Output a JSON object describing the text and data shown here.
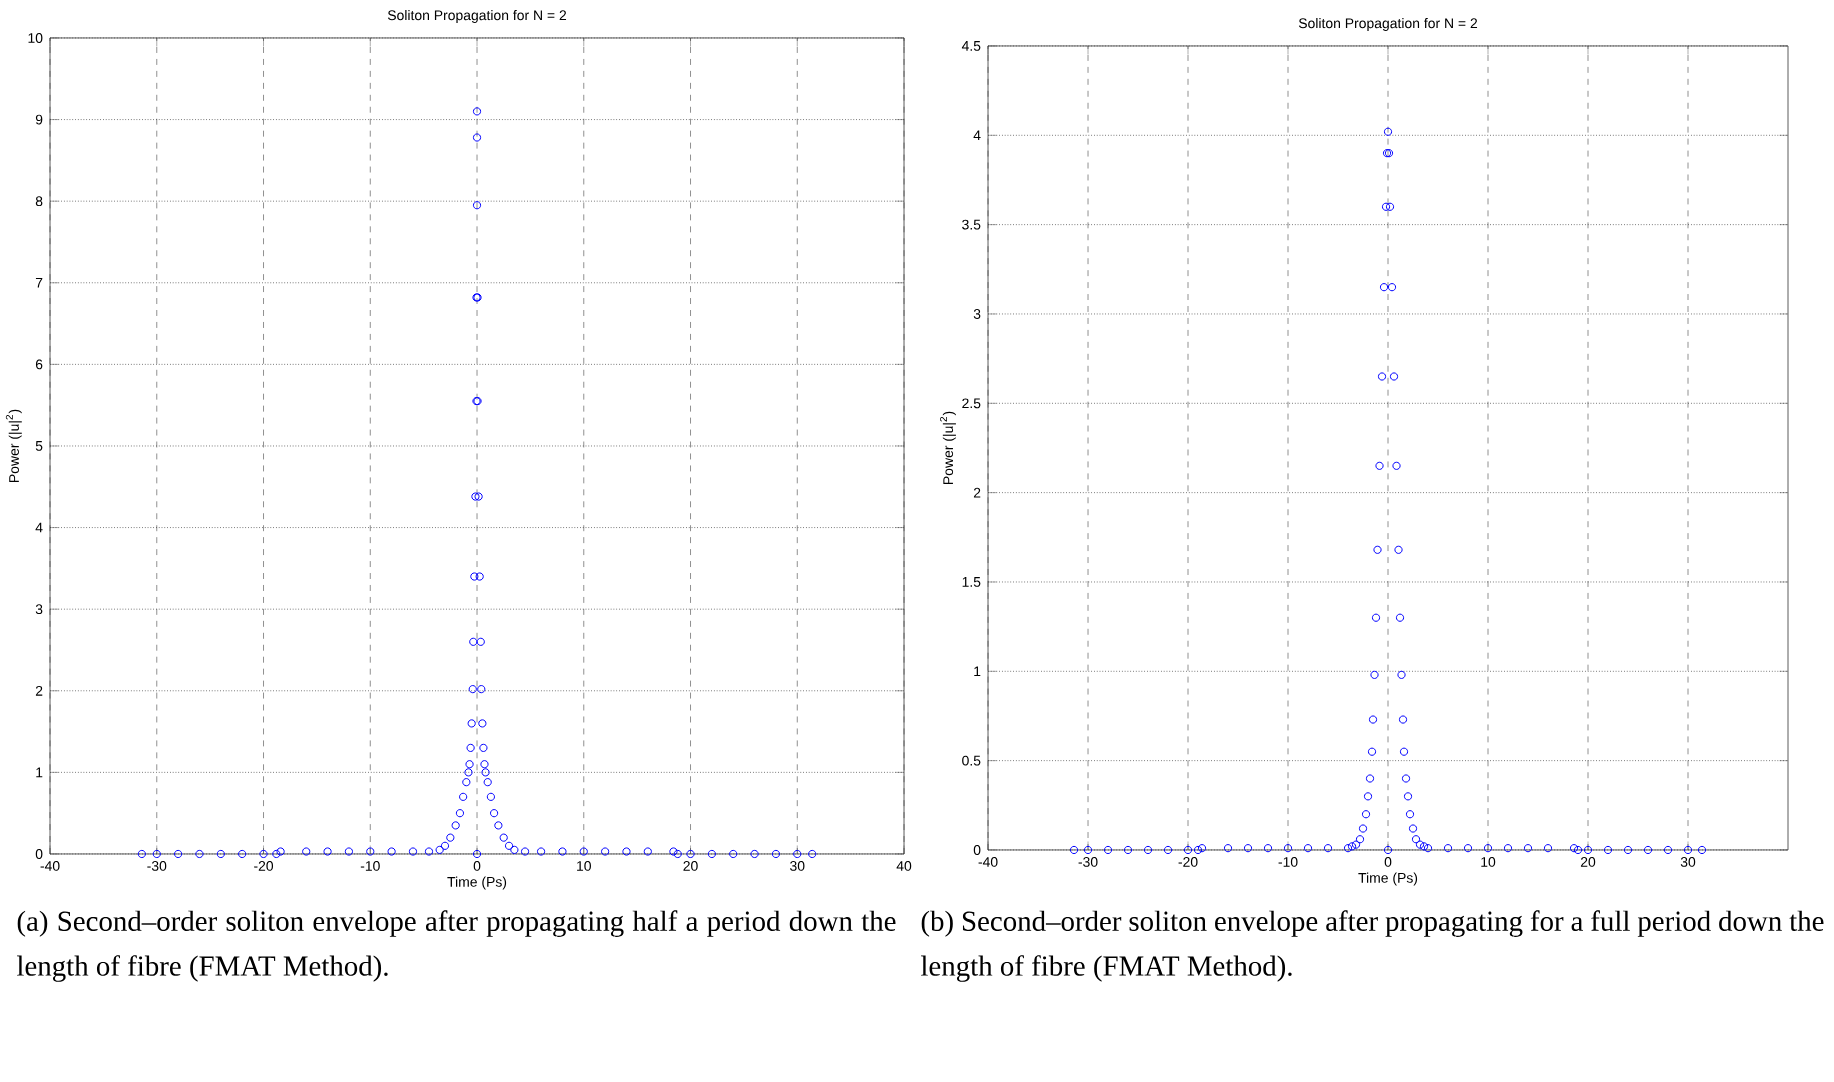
{
  "chart_data": [
    {
      "type": "scatter",
      "title": "Soliton Propagation for N = 2",
      "xlabel": "Time (Ps)",
      "ylabel": "Power (|u|$^{2}$)",
      "annotations": [
        "(a) Second–order soliton envelope after propagating half a period down the length of fibre (FMAT Method)."
      ],
      "xlim": [
        -40,
        40
      ],
      "xticks": [
        -40,
        -30,
        -20,
        -10,
        0,
        10,
        20,
        30,
        40
      ],
      "ylim": [
        0,
        10
      ],
      "yticks": [
        0,
        1,
        2,
        3,
        4,
        5,
        6,
        7,
        8,
        9,
        10
      ],
      "grid": true,
      "marker": "circle",
      "series": [
        {
          "color": "#0000ff",
          "x": [
            -31.4,
            -30,
            -28,
            -26,
            -24,
            -22,
            -20,
            -18.8,
            -18.4,
            -16,
            -14,
            -12,
            -10,
            -8,
            -6,
            -4.5,
            -3.5,
            -3,
            -2.5,
            -2,
            -1.6,
            -1.3,
            -1,
            -0.8,
            -0.7,
            -0.6,
            -0.5,
            -0.4,
            -0.35,
            -0.25,
            -0.15,
            -0.05,
            -0.05,
            0,
            0,
            0,
            0,
            0.05,
            0.05,
            0.15,
            0.25,
            0.35,
            0.4,
            0.5,
            0.6,
            0.7,
            0.8,
            1,
            1.3,
            1.6,
            2,
            2.5,
            3,
            3.5,
            4.5,
            6,
            8,
            10,
            12,
            14,
            16,
            18.4,
            18.8,
            20,
            22,
            24,
            26,
            28,
            30,
            31.4
          ],
          "values": [
            0,
            0,
            0,
            0,
            0,
            0,
            0,
            0,
            0.03,
            0.03,
            0.03,
            0.03,
            0.03,
            0.03,
            0.03,
            0.03,
            0.05,
            0.1,
            0.2,
            0.35,
            0.5,
            0.7,
            0.88,
            1.0,
            1.1,
            1.3,
            1.6,
            2.02,
            2.6,
            3.4,
            4.38,
            5.55,
            6.82,
            7.95,
            8.78,
            9.1,
            0,
            6.82,
            5.55,
            4.38,
            3.4,
            2.6,
            2.02,
            1.6,
            1.3,
            1.1,
            1.0,
            0.88,
            0.7,
            0.5,
            0.35,
            0.2,
            0.1,
            0.05,
            0.03,
            0.03,
            0.03,
            0.03,
            0.03,
            0.03,
            0.03,
            0.03,
            0,
            0,
            0,
            0,
            0,
            0,
            0,
            0
          ]
        }
      ]
    },
    {
      "type": "scatter",
      "title": "Soliton Propagation for N = 2",
      "xlabel": "Time (Ps)",
      "ylabel": "Power (|u|$^{2}$)",
      "annotations": [
        "(b) Second–order soliton envelope after propagating for a full period down the length of fibre (FMAT Method)."
      ],
      "xlim": [
        -40,
        40
      ],
      "xticks": [
        -40,
        -30,
        -20,
        -10,
        0,
        10,
        20,
        30
      ],
      "ylim": [
        0,
        4.5
      ],
      "yticks": [
        0,
        0.5,
        1,
        1.5,
        2,
        2.5,
        3,
        3.5,
        4,
        4.5
      ],
      "grid": true,
      "marker": "circle",
      "series": [
        {
          "color": "#0000ff",
          "x": [
            -31.4,
            -30,
            -28,
            -26,
            -24,
            -22,
            -20,
            -19,
            -18.6,
            -16,
            -14,
            -12,
            -10,
            -8,
            -6,
            -4,
            -3.6,
            -3.2,
            -2.8,
            -2.5,
            -2.2,
            -2,
            -1.8,
            -1.6,
            -1.5,
            -1.35,
            -1.2,
            -1.05,
            -0.85,
            -0.6,
            -0.4,
            -0.2,
            -0.1,
            0,
            0,
            0.1,
            0.2,
            0.4,
            0.6,
            0.85,
            1.05,
            1.2,
            1.35,
            1.5,
            1.6,
            1.8,
            2,
            2.2,
            2.5,
            2.8,
            3.2,
            3.6,
            4,
            6,
            8,
            10,
            12,
            14,
            16,
            18.6,
            19,
            20,
            22,
            24,
            26,
            28,
            30,
            31.4
          ],
          "values": [
            0,
            0,
            0,
            0,
            0,
            0,
            0,
            0,
            0.01,
            0.01,
            0.01,
            0.01,
            0.01,
            0.01,
            0.01,
            0.01,
            0.02,
            0.03,
            0.06,
            0.12,
            0.2,
            0.3,
            0.4,
            0.55,
            0.73,
            0.98,
            1.3,
            1.68,
            2.15,
            2.65,
            3.15,
            3.6,
            3.9,
            4.02,
            0,
            3.9,
            3.6,
            3.15,
            2.65,
            2.15,
            1.68,
            1.3,
            0.98,
            0.73,
            0.55,
            0.4,
            0.3,
            0.2,
            0.12,
            0.06,
            0.03,
            0.02,
            0.01,
            0.01,
            0.01,
            0.01,
            0.01,
            0.01,
            0.01,
            0.01,
            0,
            0,
            0,
            0,
            0,
            0,
            0,
            0
          ]
        }
      ]
    }
  ]
}
